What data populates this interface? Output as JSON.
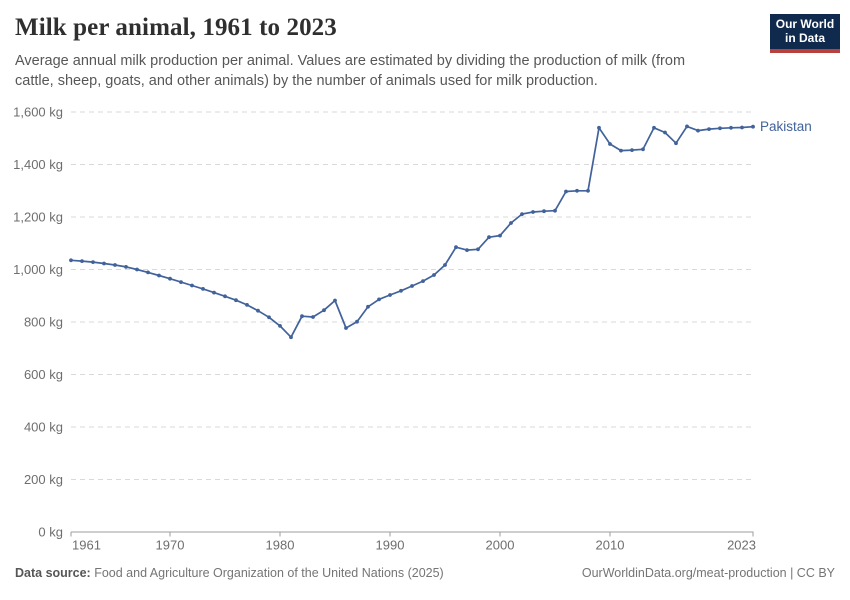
{
  "header": {
    "title": "Milk per animal, 1961 to 2023",
    "subtitle": "Average annual milk production per animal. Values are estimated by dividing the production of milk (from cattle, sheep, goats, and other animals) by the number of animals used for milk production.",
    "logo": {
      "line1": "Our World",
      "line2": "in Data",
      "bg_color": "#102a4e",
      "bar_color": "#b6413e"
    }
  },
  "chart_data": {
    "type": "line",
    "title": "Milk per animal, 1961 to 2023",
    "unit": "kg",
    "xlim": [
      1961,
      2023
    ],
    "ylim": [
      0,
      1600
    ],
    "x_ticks": [
      1961,
      1970,
      1980,
      1990,
      2000,
      2010,
      2023
    ],
    "y_ticks": [
      0,
      200,
      400,
      600,
      800,
      1000,
      1200,
      1400,
      1600
    ],
    "y_tick_suffix": " kg",
    "grid": "dashed-horizontal",
    "legend_position": "end-of-line",
    "colors": {
      "line": "#41629b",
      "grid": "#d9d9d9",
      "axis": "#9e9e9e",
      "tick_label": "#6e6e6e"
    },
    "series": [
      {
        "name": "Pakistan",
        "color": "#41629b",
        "x": [
          1961,
          1962,
          1963,
          1964,
          1965,
          1966,
          1967,
          1968,
          1969,
          1970,
          1971,
          1972,
          1973,
          1974,
          1975,
          1976,
          1977,
          1978,
          1979,
          1980,
          1981,
          1982,
          1983,
          1984,
          1985,
          1986,
          1987,
          1988,
          1989,
          1990,
          1991,
          1992,
          1993,
          1994,
          1995,
          1996,
          1997,
          1998,
          1999,
          2000,
          2001,
          2002,
          2003,
          2004,
          2005,
          2006,
          2007,
          2008,
          2009,
          2010,
          2011,
          2012,
          2013,
          2014,
          2015,
          2016,
          2017,
          2018,
          2019,
          2020,
          2021,
          2022,
          2023
        ],
        "values": [
          1035,
          1032,
          1028,
          1023,
          1017,
          1010,
          1000,
          989,
          977,
          965,
          952,
          939,
          926,
          912,
          898,
          883,
          865,
          843,
          818,
          785,
          742,
          822,
          819,
          845,
          882,
          777,
          801,
          858,
          886,
          903,
          919,
          937,
          956,
          979,
          1017,
          1085,
          1074,
          1077,
          1123,
          1129,
          1177,
          1211,
          1219,
          1222,
          1224,
          1297,
          1300,
          1300,
          1540,
          1478,
          1453,
          1455,
          1458,
          1540,
          1522,
          1481,
          1545,
          1529,
          1535,
          1538,
          1540,
          1541,
          1544
        ]
      }
    ]
  },
  "footer": {
    "source_label": "Data source:",
    "source_text": " Food and Agriculture Organization of the United Nations (2025)",
    "credit": "OurWorldinData.org/meat-production | CC BY"
  }
}
